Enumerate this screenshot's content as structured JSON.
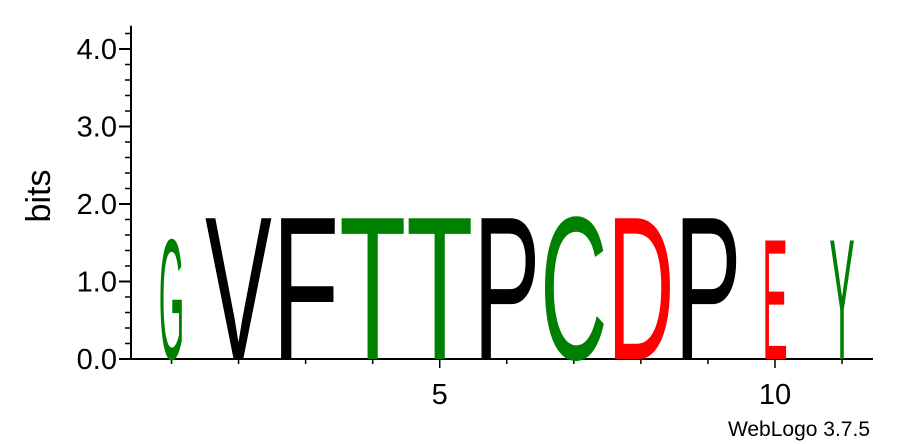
{
  "chart_data": {
    "type": "sequence-logo",
    "ylabel": "bits",
    "ylim": [
      0,
      4.3
    ],
    "y_ticks": [
      "0.0",
      "1.0",
      "2.0",
      "3.0",
      "4.0"
    ],
    "x_tick_labels": [
      "5",
      "10"
    ],
    "positions": [
      {
        "pos": 1,
        "letter": "G",
        "bits": 1.6,
        "color": "#008000"
      },
      {
        "pos": 2,
        "letter": "V",
        "bits": 1.9,
        "color": "#000000"
      },
      {
        "pos": 3,
        "letter": "F",
        "bits": 1.9,
        "color": "#000000"
      },
      {
        "pos": 4,
        "letter": "T",
        "bits": 1.9,
        "color": "#008000"
      },
      {
        "pos": 5,
        "letter": "T",
        "bits": 1.9,
        "color": "#008000"
      },
      {
        "pos": 6,
        "letter": "P",
        "bits": 1.9,
        "color": "#000000"
      },
      {
        "pos": 7,
        "letter": "C",
        "bits": 1.9,
        "color": "#008000"
      },
      {
        "pos": 8,
        "letter": "D",
        "bits": 1.9,
        "color": "#ff0000"
      },
      {
        "pos": 9,
        "letter": "P",
        "bits": 1.9,
        "color": "#000000"
      },
      {
        "pos": 10,
        "letter": "E",
        "bits": 1.6,
        "color": "#ff0000"
      },
      {
        "pos": 11,
        "letter": "Y",
        "bits": 1.6,
        "color": "#008000"
      }
    ],
    "footer": "WebLogo 3.7.5"
  }
}
